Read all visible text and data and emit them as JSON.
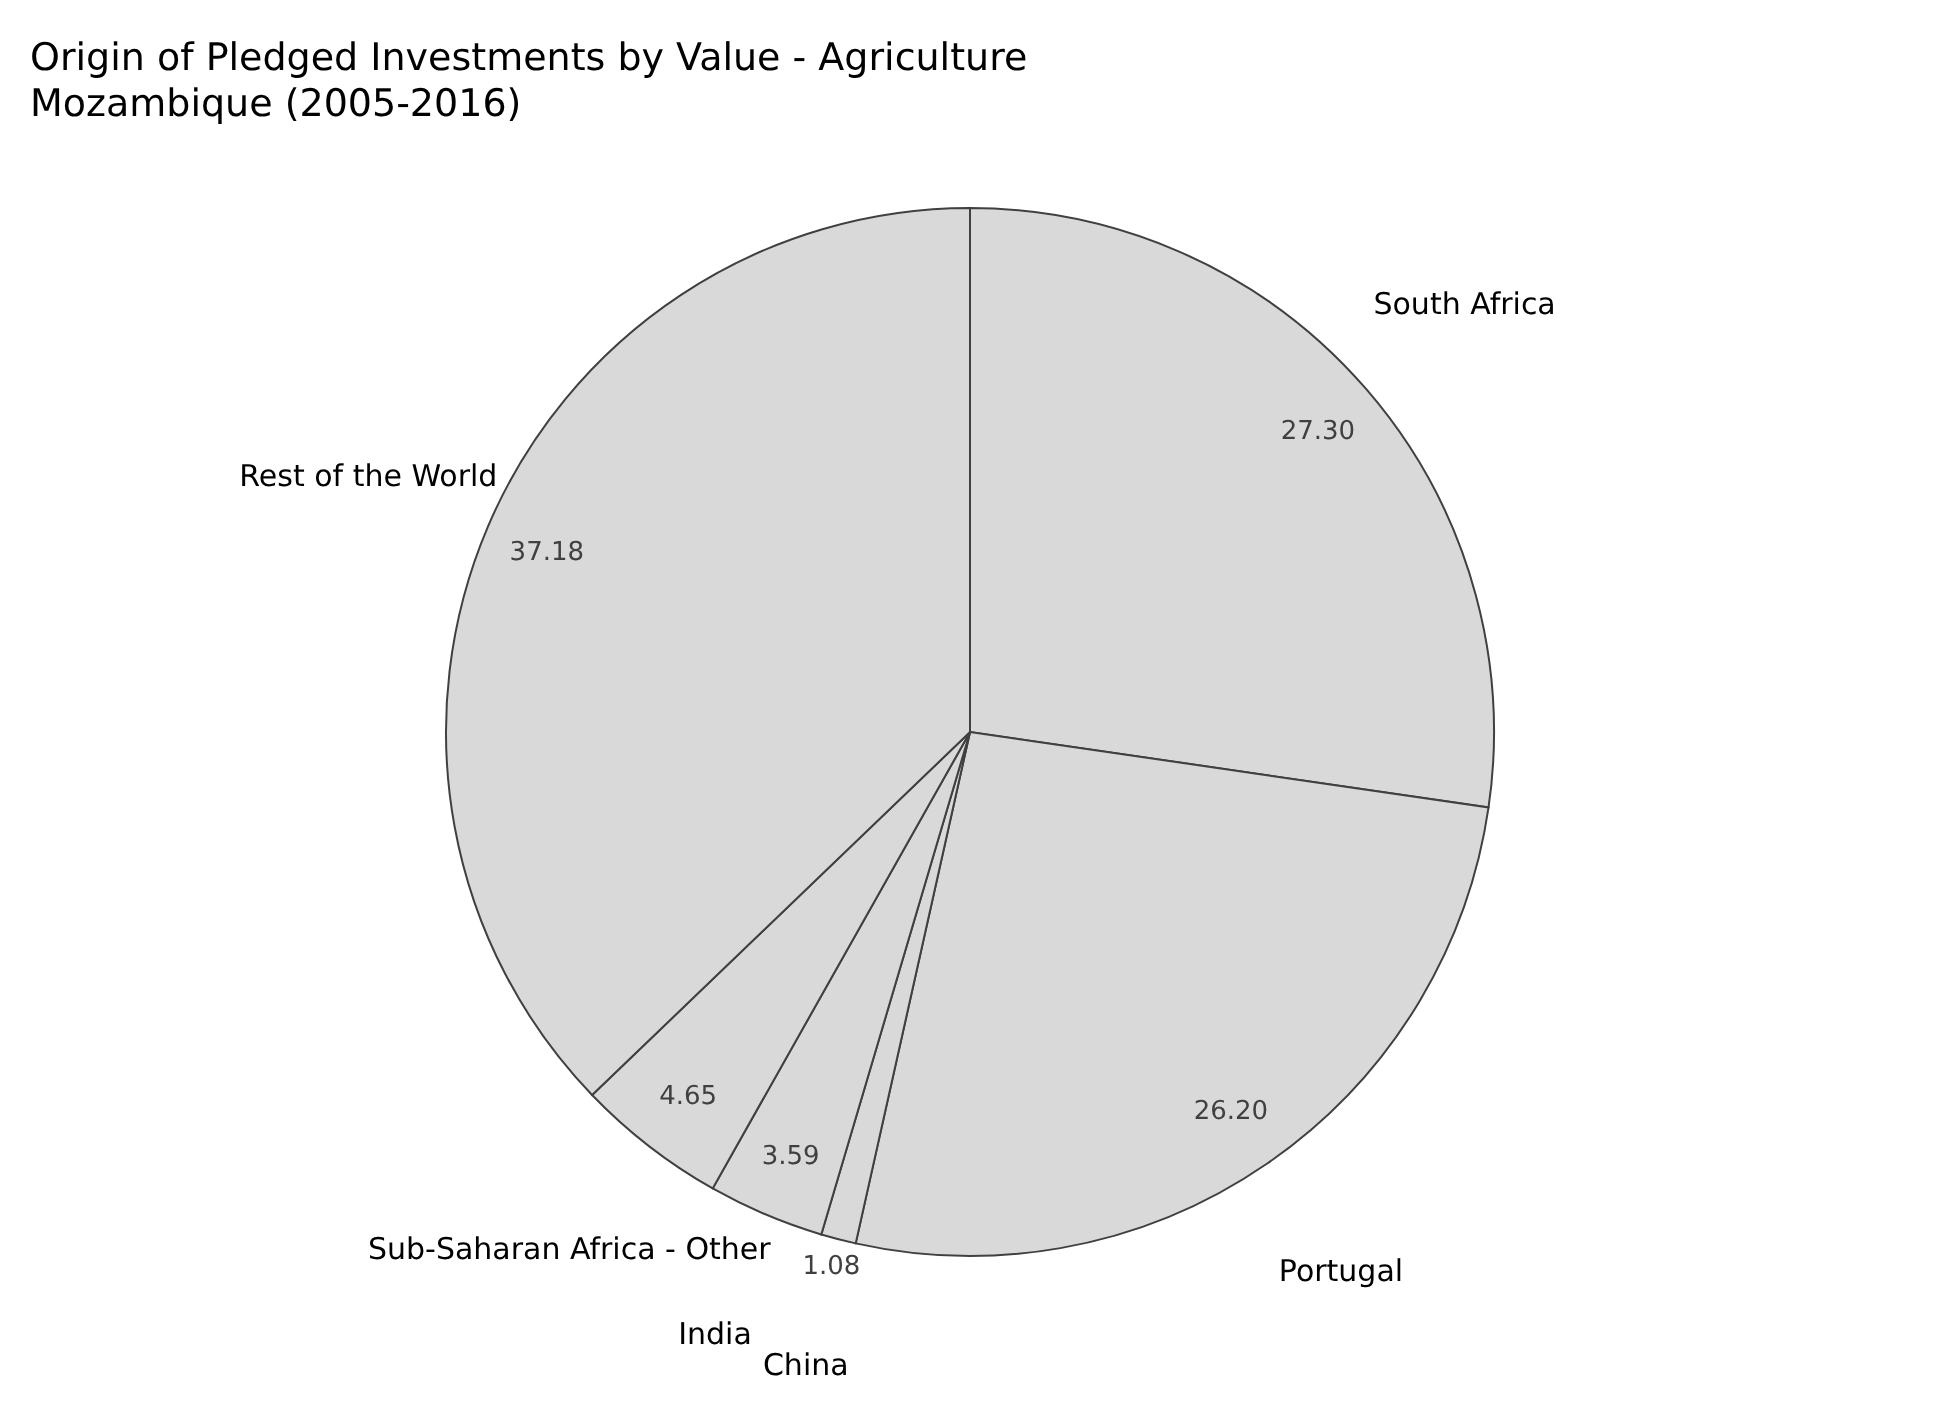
{
  "chart_data": {
    "type": "pie",
    "title": "Origin of Pledged Investments by Value - Agriculture",
    "subtitle": "Mozambique (2005-2016)",
    "categories": [
      "South Africa",
      "Portugal",
      "China",
      "India",
      "Sub-Saharan Africa - Other",
      "Rest of the World"
    ],
    "values": [
      27.3,
      26.2,
      1.08,
      3.59,
      4.65,
      37.18
    ],
    "colors": [
      "#d9d9d9",
      "#d9d9d9",
      "#d9d9d9",
      "#d9d9d9",
      "#d9d9d9",
      "#d9d9d9"
    ],
    "value_labels": [
      "27.30",
      "26.20",
      "1.08",
      "3.59",
      "4.65",
      "37.18"
    ],
    "legend": false
  }
}
